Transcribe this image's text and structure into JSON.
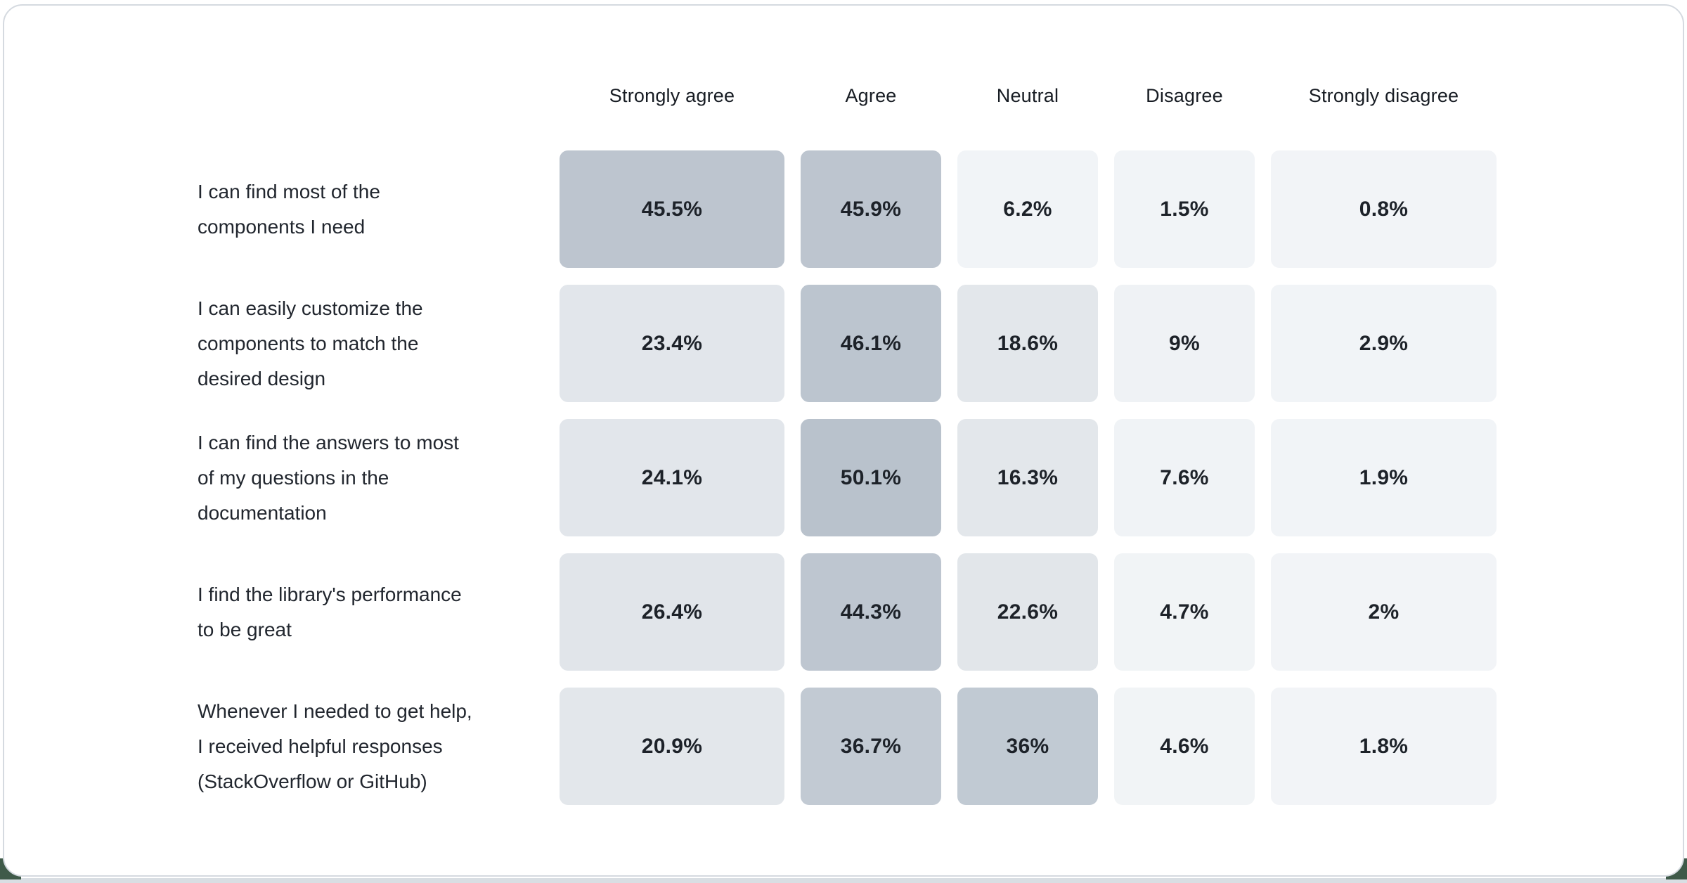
{
  "page": {
    "card_background": "#ffffff",
    "card_border_color": "#d5dae0",
    "bottom_strip_color": "#d9dee3",
    "corner_accent_color": "#3f5a49"
  },
  "table": {
    "columns": [
      "Strongly agree",
      "Agree",
      "Neutral",
      "Disagree",
      "Strongly disagree"
    ],
    "rows": [
      {
        "question": "I can find most of the\ncomponents I need",
        "cells": [
          {
            "value": "45.5%",
            "bg": "#bdc5cf"
          },
          {
            "value": "45.9%",
            "bg": "#bdc5cf"
          },
          {
            "value": "6.2%",
            "bg": "#f1f4f7"
          },
          {
            "value": "1.5%",
            "bg": "#f1f4f7"
          },
          {
            "value": "0.8%",
            "bg": "#f2f4f7"
          }
        ]
      },
      {
        "question": "I can easily customize the\ncomponents to match the\ndesired design",
        "cells": [
          {
            "value": "23.4%",
            "bg": "#e2e6eb"
          },
          {
            "value": "46.1%",
            "bg": "#bcc5cf"
          },
          {
            "value": "18.6%",
            "bg": "#e3e7eb"
          },
          {
            "value": "9%",
            "bg": "#eff2f5"
          },
          {
            "value": "2.9%",
            "bg": "#f1f4f7"
          }
        ]
      },
      {
        "question": "I can find the answers to most\nof my questions in the\ndocumentation",
        "cells": [
          {
            "value": "24.1%",
            "bg": "#e2e6eb"
          },
          {
            "value": "50.1%",
            "bg": "#b9c2cc"
          },
          {
            "value": "16.3%",
            "bg": "#e3e7eb"
          },
          {
            "value": "7.6%",
            "bg": "#f0f3f6"
          },
          {
            "value": "1.9%",
            "bg": "#f1f4f7"
          }
        ]
      },
      {
        "question": "I find the library's performance\nto be great",
        "cells": [
          {
            "value": "26.4%",
            "bg": "#e1e5ea"
          },
          {
            "value": "44.3%",
            "bg": "#bec6d0"
          },
          {
            "value": "22.6%",
            "bg": "#e2e6ea"
          },
          {
            "value": "4.7%",
            "bg": "#f1f4f6"
          },
          {
            "value": "2%",
            "bg": "#f2f4f7"
          }
        ]
      },
      {
        "question": "Whenever I needed to get help,\nI received helpful responses\n(StackOverflow or GitHub)",
        "cells": [
          {
            "value": "20.9%",
            "bg": "#e3e7eb"
          },
          {
            "value": "36.7%",
            "bg": "#c2cad3"
          },
          {
            "value": "36%",
            "bg": "#c1cad3"
          },
          {
            "value": "4.6%",
            "bg": "#f1f4f6"
          },
          {
            "value": "1.8%",
            "bg": "#f2f4f7"
          }
        ]
      }
    ]
  },
  "chart_data": {
    "type": "heatmap",
    "title": "",
    "columns": [
      "Strongly agree",
      "Agree",
      "Neutral",
      "Disagree",
      "Strongly disagree"
    ],
    "rows": [
      {
        "label": "I can find most of the components I need",
        "values": [
          45.5,
          45.9,
          6.2,
          1.5,
          0.8
        ]
      },
      {
        "label": "I can easily customize the components to match the desired design",
        "values": [
          23.4,
          46.1,
          18.6,
          9,
          2.9
        ]
      },
      {
        "label": "I can find the answers to most of my questions in the documentation",
        "values": [
          24.1,
          50.1,
          16.3,
          7.6,
          1.9
        ]
      },
      {
        "label": "I find the library's performance to be great",
        "values": [
          26.4,
          44.3,
          22.6,
          4.7,
          2
        ]
      },
      {
        "label": "Whenever I needed to get help, I received helpful responses (StackOverflow or GitHub)",
        "values": [
          20.9,
          36.7,
          36,
          4.6,
          1.8
        ]
      }
    ],
    "value_unit": "%",
    "color_scale": {
      "low_color": "#f2f4f7",
      "high_color": "#b9c2cc",
      "domain": [
        0,
        50.1
      ]
    },
    "legend": "none",
    "grid": "off"
  }
}
